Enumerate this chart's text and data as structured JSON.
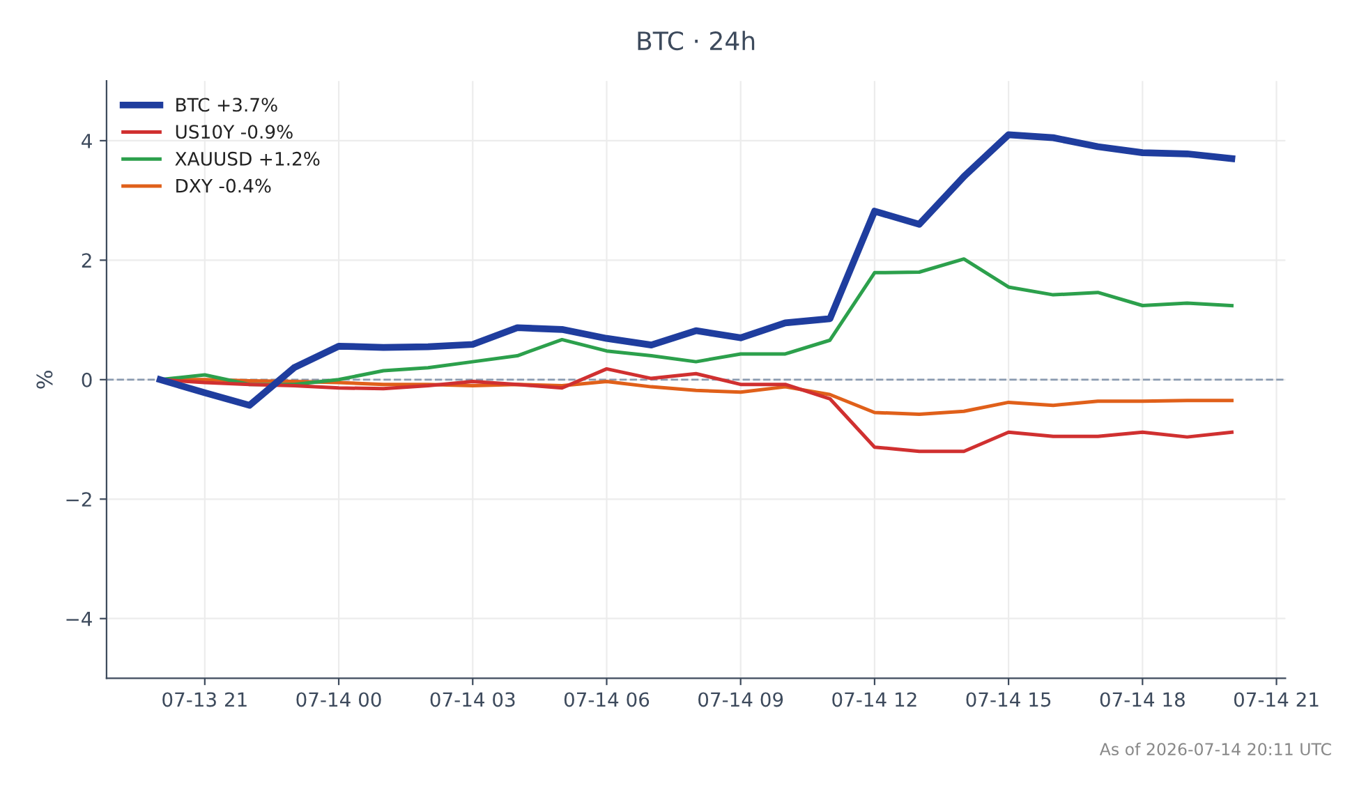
{
  "chart_data": {
    "type": "line",
    "title": "BTC · 24h",
    "ylabel": "%",
    "x": [
      "2026-07-13T20:00",
      "2026-07-13T21:00",
      "2026-07-13T22:00",
      "2026-07-13T23:00",
      "2026-07-14T00:00",
      "2026-07-14T01:00",
      "2026-07-14T02:00",
      "2026-07-14T03:00",
      "2026-07-14T04:00",
      "2026-07-14T05:00",
      "2026-07-14T06:00",
      "2026-07-14T07:00",
      "2026-07-14T08:00",
      "2026-07-14T09:00",
      "2026-07-14T10:00",
      "2026-07-14T11:00",
      "2026-07-14T12:00",
      "2026-07-14T13:00",
      "2026-07-14T14:00",
      "2026-07-14T15:00",
      "2026-07-14T16:00",
      "2026-07-14T17:00",
      "2026-07-14T18:00",
      "2026-07-14T19:00",
      "2026-07-14T20:00"
    ],
    "series": [
      {
        "name": "BTC +3.7%",
        "color": "#1f3d9e",
        "values": [
          0,
          -0.22,
          -0.43,
          0.2,
          0.56,
          0.54,
          0.55,
          0.59,
          0.87,
          0.84,
          0.69,
          0.58,
          0.82,
          0.7,
          0.95,
          1.02,
          2.82,
          2.6,
          3.4,
          4.1,
          4.05,
          3.9,
          3.8,
          3.78,
          3.7
        ]
      },
      {
        "name": "US10Y -0.9%",
        "color": "#d03030",
        "values": [
          0,
          -0.05,
          -0.08,
          -0.1,
          -0.14,
          -0.15,
          -0.1,
          -0.03,
          -0.08,
          -0.14,
          0.18,
          0.02,
          0.1,
          -0.08,
          -0.08,
          -0.32,
          -1.13,
          -1.2,
          -1.2,
          -0.88,
          -0.95,
          -0.95,
          -0.88,
          -0.96,
          -0.88
        ]
      },
      {
        "name": "XAUUSD +1.2%",
        "color": "#2ca04c",
        "values": [
          0,
          0.08,
          -0.08,
          -0.08,
          0,
          0.15,
          0.2,
          0.3,
          0.4,
          0.67,
          0.48,
          0.4,
          0.3,
          0.43,
          0.43,
          0.66,
          1.79,
          1.8,
          2.02,
          1.55,
          1.42,
          1.46,
          1.24,
          1.28,
          1.24
        ]
      },
      {
        "name": "DXY -0.4%",
        "color": "#e0601a",
        "values": [
          0,
          0,
          -0.02,
          -0.03,
          -0.05,
          -0.08,
          -0.08,
          -0.1,
          -0.08,
          -0.1,
          -0.03,
          -0.12,
          -0.18,
          -0.21,
          -0.12,
          -0.25,
          -0.55,
          -0.58,
          -0.53,
          -0.38,
          -0.43,
          -0.36,
          -0.36,
          -0.35,
          -0.35
        ]
      }
    ],
    "xlim": [
      "2026-07-13T18:48",
      "2026-07-14T21:12"
    ],
    "xticks": [
      {
        "value": "2026-07-13T21:00",
        "label": "07-13 21"
      },
      {
        "value": "2026-07-14T00:00",
        "label": "07-14 00"
      },
      {
        "value": "2026-07-14T03:00",
        "label": "07-14 03"
      },
      {
        "value": "2026-07-14T06:00",
        "label": "07-14 06"
      },
      {
        "value": "2026-07-14T09:00",
        "label": "07-14 09"
      },
      {
        "value": "2026-07-14T12:00",
        "label": "07-14 12"
      },
      {
        "value": "2026-07-14T15:00",
        "label": "07-14 15"
      },
      {
        "value": "2026-07-14T18:00",
        "label": "07-14 18"
      },
      {
        "value": "2026-07-14T21:00",
        "label": "07-14 21"
      }
    ],
    "ylim": [
      -5,
      5
    ],
    "yticks": [
      {
        "value": -4,
        "label": "−4"
      },
      {
        "value": -2,
        "label": "−2"
      },
      0,
      2,
      4
    ],
    "ref_lines": [
      {
        "axis": "y",
        "value": 0,
        "color": "#8a9ab0",
        "line_style": "dashed"
      }
    ],
    "grid": true,
    "legend": "top left",
    "marker": "none",
    "line_style": "solid",
    "annotations": [
      "As of 2026-07-14 20:11 UTC"
    ]
  }
}
